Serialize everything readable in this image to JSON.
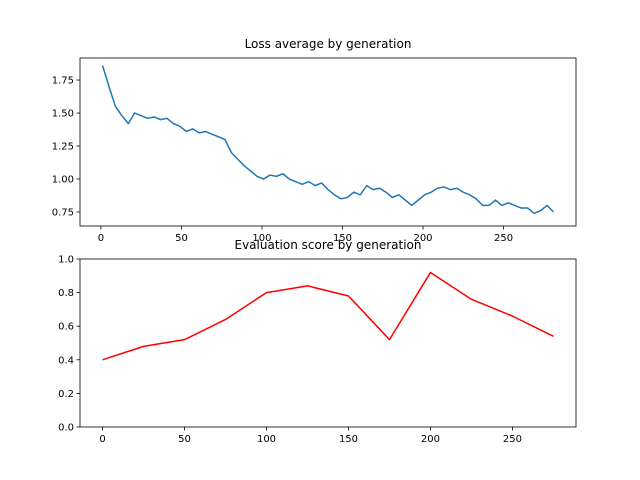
{
  "chart_data": [
    {
      "type": "line",
      "title": "Loss average by generation",
      "x": [
        1,
        5,
        9,
        13,
        17,
        21,
        25,
        29,
        33,
        37,
        41,
        45,
        49,
        53,
        57,
        61,
        65,
        69,
        73,
        77,
        81,
        85,
        89,
        93,
        97,
        101,
        105,
        109,
        113,
        117,
        121,
        125,
        129,
        133,
        137,
        141,
        145,
        149,
        153,
        157,
        161,
        165,
        169,
        173,
        177,
        181,
        185,
        189,
        193,
        197,
        201,
        205,
        209,
        213,
        217,
        221,
        225,
        229,
        233,
        237,
        241,
        245,
        249,
        253,
        257,
        261,
        265,
        269,
        273,
        277,
        281
      ],
      "series": [
        {
          "color": "#1f77b4",
          "values": [
            1.86,
            1.7,
            1.55,
            1.48,
            1.42,
            1.5,
            1.48,
            1.46,
            1.47,
            1.45,
            1.46,
            1.42,
            1.4,
            1.36,
            1.38,
            1.35,
            1.36,
            1.34,
            1.32,
            1.3,
            1.2,
            1.15,
            1.1,
            1.06,
            1.02,
            1.0,
            1.03,
            1.02,
            1.04,
            1.0,
            0.98,
            0.96,
            0.98,
            0.95,
            0.97,
            0.92,
            0.88,
            0.85,
            0.86,
            0.9,
            0.88,
            0.95,
            0.92,
            0.93,
            0.9,
            0.86,
            0.88,
            0.84,
            0.8,
            0.84,
            0.88,
            0.9,
            0.93,
            0.94,
            0.92,
            0.93,
            0.9,
            0.88,
            0.85,
            0.8,
            0.8,
            0.84,
            0.8,
            0.82,
            0.8,
            0.78,
            0.78,
            0.74,
            0.76,
            0.8,
            0.75
          ]
        }
      ],
      "xlim": [
        -13,
        295
      ],
      "ylim": [
        0.644,
        1.917
      ],
      "xticks": [
        0,
        50,
        100,
        150,
        200,
        250
      ],
      "yticks": [
        0.75,
        {
          "value": 1,
          "label": "1.00"
        },
        1.25,
        {
          "value": 1.5,
          "label": "1.50"
        },
        1.75
      ]
    },
    {
      "type": "line",
      "title": "Evaluation score by generation",
      "x": [
        0,
        25,
        50,
        75,
        100,
        125,
        150,
        175,
        200,
        225,
        250,
        275
      ],
      "series": [
        {
          "color": "#ff0000",
          "values": [
            0.4,
            0.48,
            0.52,
            0.64,
            0.8,
            0.84,
            0.78,
            0.52,
            0.92,
            0.76,
            0.66,
            0.54
          ]
        }
      ],
      "xlim": [
        -13.75,
        288.75
      ],
      "ylim": [
        0,
        1
      ],
      "xticks": [
        0,
        50,
        100,
        150,
        200,
        250
      ],
      "yticks": [
        {
          "value": 0,
          "label": "0.0"
        },
        0.2,
        0.4,
        0.6,
        0.8,
        {
          "value": 1,
          "label": "1.0"
        }
      ]
    }
  ]
}
